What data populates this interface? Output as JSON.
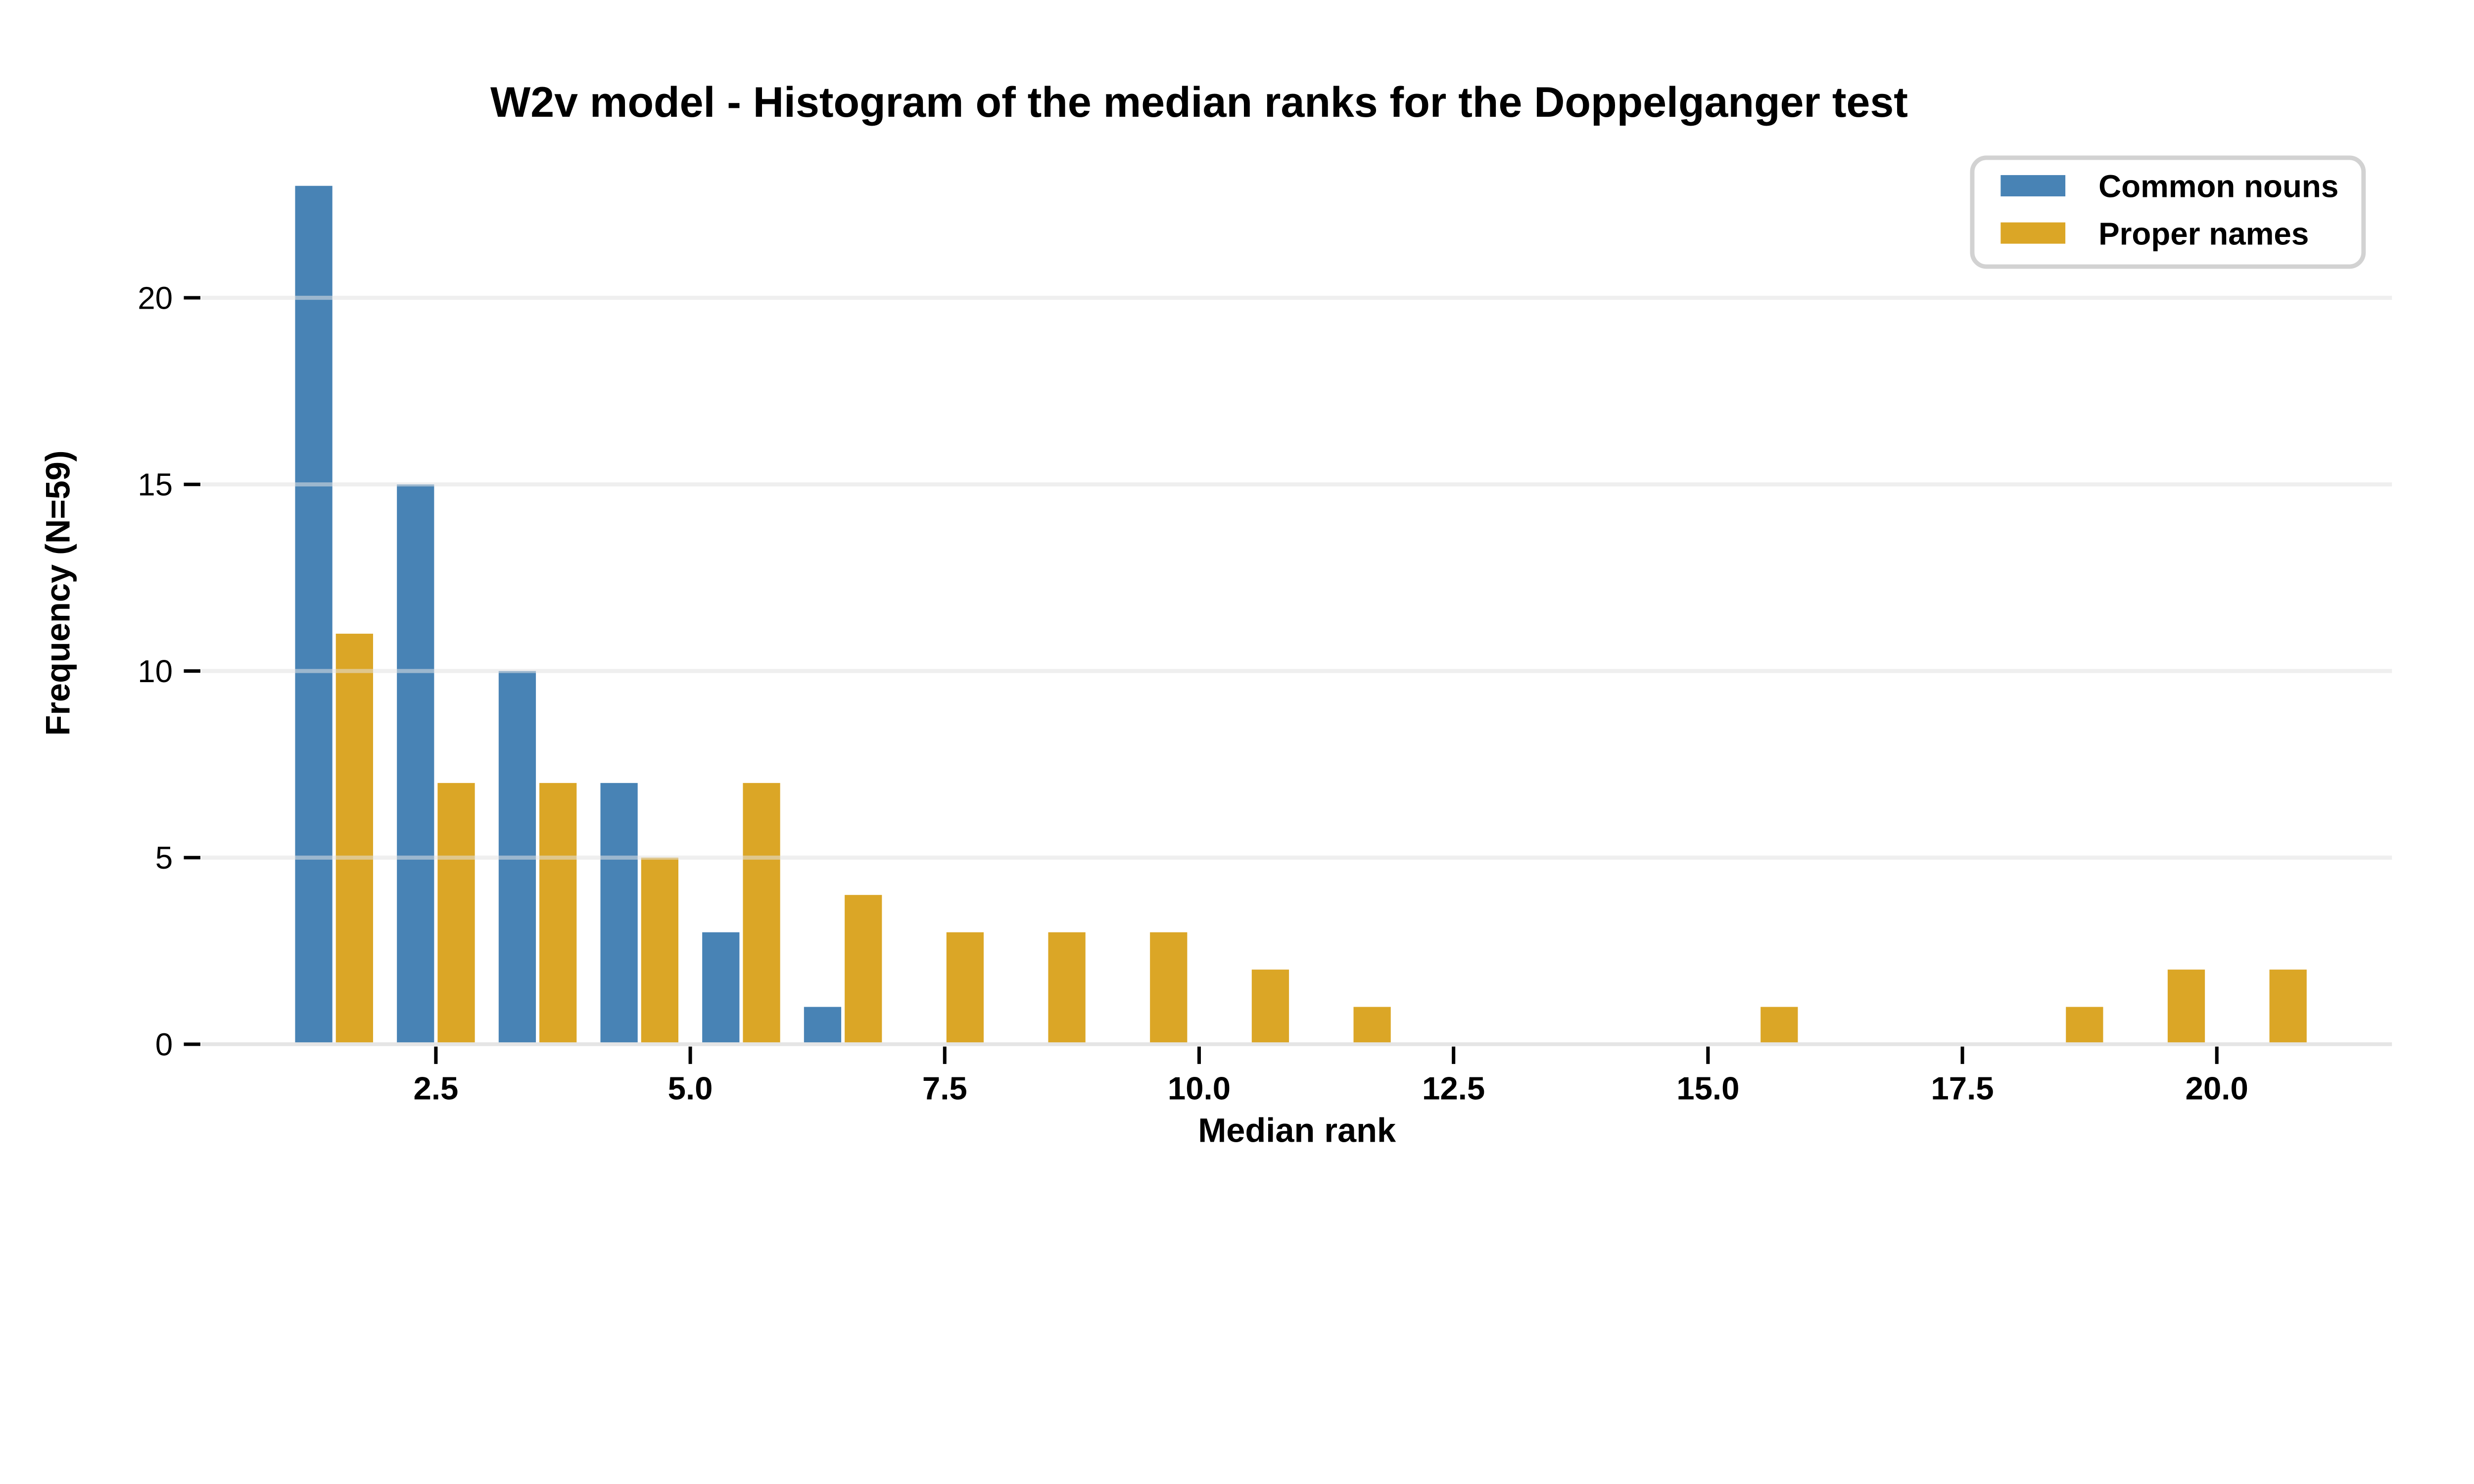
{
  "chart_data": {
    "type": "bar",
    "subtype": "histogram-dodged",
    "title": "W2v model - Histogram of the median ranks for the Doppelganger test",
    "xlabel": "Median rank",
    "ylabel": "Frequency (N=59)",
    "bin_start": 1,
    "bin_width": 1,
    "bin_count": 20,
    "series": [
      {
        "name": "Common nouns",
        "color": "#4883B5",
        "values": [
          23,
          15,
          10,
          7,
          3,
          1,
          0,
          0,
          0,
          0,
          0,
          0,
          0,
          0,
          0,
          0,
          0,
          0,
          0,
          0
        ]
      },
      {
        "name": "Proper names",
        "color": "#DBA626",
        "values": [
          11,
          7,
          7,
          5,
          7,
          4,
          3,
          3,
          3,
          2,
          1,
          0,
          0,
          0,
          1,
          0,
          0,
          1,
          2,
          2
        ]
      }
    ],
    "x_ticks": {
      "values": [
        2.5,
        5,
        7.5,
        10,
        12.5,
        15,
        17.5,
        20
      ],
      "labels": [
        "2.5",
        "5.0",
        "7.5",
        "10.0",
        "12.5",
        "15.0",
        "17.5",
        "20.0"
      ]
    },
    "y_ticks": {
      "values": [
        0,
        5,
        10,
        15,
        20
      ],
      "labels": [
        "0",
        "5",
        "10",
        "15",
        "20"
      ]
    },
    "xlim": [
      0.2,
      21.9
    ],
    "ylim": [
      0,
      24.2
    ],
    "grid": "horizontal",
    "legend_position": "top-right",
    "colors": {
      "background": "#ffffff",
      "gridline": "#e5e5e5",
      "tick": "#000000",
      "legend_border": "#d2d2d2"
    }
  },
  "legend": {
    "items": [
      {
        "label": "Common nouns",
        "color": "#4883B5"
      },
      {
        "label": "Proper names",
        "color": "#DBA626"
      }
    ]
  }
}
